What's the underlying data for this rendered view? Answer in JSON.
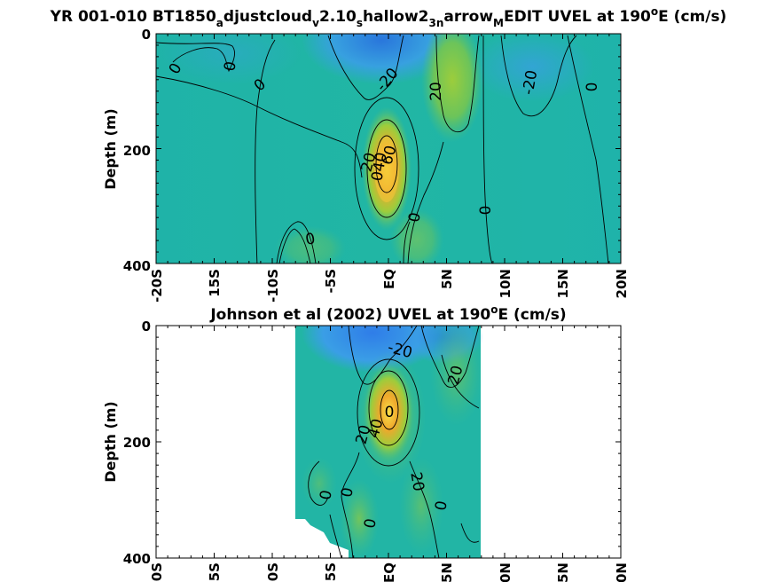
{
  "colors": {
    "deep_blue": "#2f7de8",
    "blue": "#3a9ee6",
    "teal": "#1fb6a7",
    "green": "#4cc07a",
    "yellow_green": "#9ccd3c",
    "orange": "#f0a82c",
    "yellow": "#f5d63a",
    "contour": "#000000"
  },
  "chart_data": [
    {
      "type": "heatmap",
      "title_parts": [
        "YR 001-010 BT1850",
        "a",
        "djustcloud",
        "v",
        "2.10",
        "s",
        "hallow2",
        "3n",
        "arrow",
        "M",
        "EDIT UVEL at 190",
        "o",
        "E (cm/s)"
      ],
      "xlabel": "",
      "ylabel": "Depth (m)",
      "xlim": [
        -20,
        20
      ],
      "ylim": [
        0,
        400
      ],
      "y_reversed": true,
      "x_ticks": [
        -20,
        -15,
        -10,
        -5,
        0,
        5,
        10,
        15,
        20
      ],
      "x_tick_labels": [
        "-20S",
        "15S",
        "-10S",
        "-5S",
        "EQ",
        "5N",
        "10N",
        "15N",
        "20N"
      ],
      "y_ticks": [
        0,
        200,
        400
      ],
      "y_tick_labels": [
        "0",
        "200",
        "400"
      ],
      "contour_levels": [
        -20,
        0,
        20,
        40,
        60
      ],
      "contour_labels": [
        {
          "x": -18,
          "y": 55,
          "text": "0"
        },
        {
          "x": -13.5,
          "y": 55,
          "text": "0"
        },
        {
          "x": -11,
          "y": 88,
          "text": "0"
        },
        {
          "x": -0.2,
          "y": 78,
          "text": "-20"
        },
        {
          "x": 4.2,
          "y": 103,
          "text": "20"
        },
        {
          "x": 12.5,
          "y": 88,
          "text": "-20"
        },
        {
          "x": 17.5,
          "y": 92,
          "text": "0"
        },
        {
          "x": 0.2,
          "y": 205,
          "text": "60"
        },
        {
          "x": -1.5,
          "y": 215,
          "text": "20"
        },
        {
          "x": -0.5,
          "y": 233,
          "text": "040"
        },
        {
          "x": 2.5,
          "y": 318,
          "text": "0"
        },
        {
          "x": 8.2,
          "y": 300,
          "text": "0"
        },
        {
          "x": -6.5,
          "y": 355,
          "text": "0"
        }
      ],
      "max_value_location": {
        "x": 0,
        "y": 190
      },
      "min_value_location": {
        "x": 1,
        "y": 60
      }
    },
    {
      "type": "heatmap",
      "title_parts": [
        "Johnson et al (2002) UVEL at 190",
        "o",
        "E (cm/s)"
      ],
      "xlabel": "",
      "ylabel": "Depth (m)",
      "xlim": [
        -20,
        20
      ],
      "ylim": [
        0,
        400
      ],
      "y_reversed": true,
      "data_x_range": [
        -8,
        8
      ],
      "x_ticks": [
        -20,
        -15,
        -10,
        -5,
        0,
        5,
        10,
        15,
        20
      ],
      "x_tick_labels": [
        "-20S",
        "15S",
        "-10S",
        "-5S",
        "EQ",
        "5N",
        "10N",
        "15N",
        "20N"
      ],
      "y_ticks": [
        0,
        200,
        400
      ],
      "y_tick_labels": [
        "0",
        "200",
        "400"
      ],
      "contour_levels": [
        -20,
        0,
        20,
        40,
        60
      ],
      "contour_labels": [
        {
          "x": 1.5,
          "y": 45,
          "text": "-20"
        },
        {
          "x": 5.5,
          "y": 95,
          "text": "20"
        },
        {
          "x": -0.1,
          "y": 150,
          "text": "0"
        },
        {
          "x": -2,
          "y": 185,
          "text": "20"
        },
        {
          "x": -1,
          "y": 175,
          "text": "40"
        },
        {
          "x": -5,
          "y": 290,
          "text": "0"
        },
        {
          "x": -3.5,
          "y": 290,
          "text": "0"
        },
        {
          "x": 3,
          "y": 285,
          "text": "20"
        },
        {
          "x": 4.8,
          "y": 310,
          "text": "0"
        },
        {
          "x": -1.2,
          "y": 340,
          "text": "0"
        }
      ]
    }
  ]
}
